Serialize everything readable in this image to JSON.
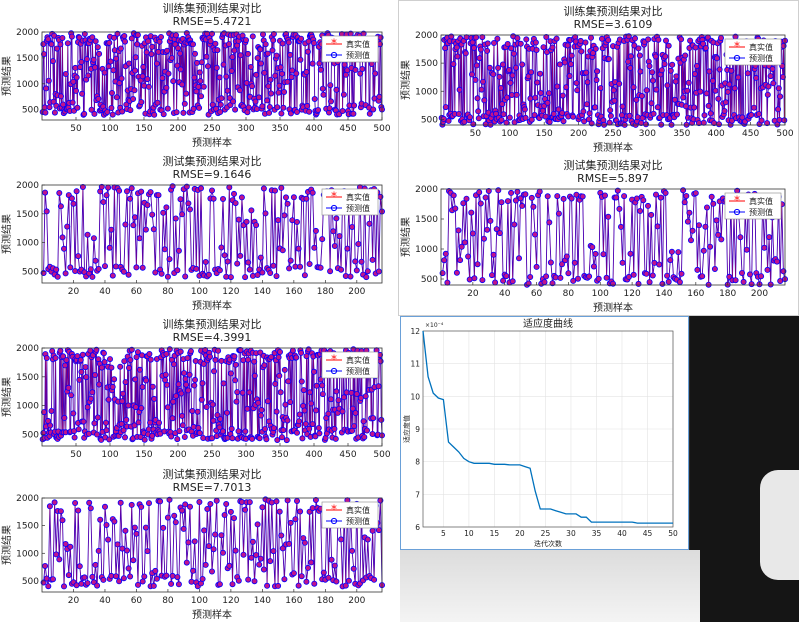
{
  "labels": {
    "train_title": "训练集预测结果对比",
    "test_title": "测试集预测结果对比",
    "xlabel": "预测样本",
    "ylabel": "预测结果",
    "legend_true": "真实值",
    "legend_pred": "预测值",
    "fitness_title": "适应度曲线",
    "fitness_xlabel": "迭代次数",
    "fitness_ylabel": "适应度值",
    "exponent": "×10⁻⁴"
  },
  "colors": {
    "true_series": "#ff0000",
    "pred_series": "#0000ff",
    "fitness_line": "#0072bd"
  },
  "chart_data": [
    {
      "id": "p1-train",
      "type": "line",
      "title": "训练集预测结果对比",
      "subtitle": "RMSE=5.4721",
      "xlabel": "预测样本",
      "ylabel": "预测结果",
      "n": 500,
      "seed": 11,
      "xlim": [
        0,
        500
      ],
      "ylim": [
        300,
        2000
      ],
      "xticks": [
        50,
        100,
        150,
        200,
        250,
        300,
        350,
        400,
        450,
        500
      ],
      "yticks": [
        500,
        1000,
        1500,
        2000
      ],
      "series": [
        {
          "name": "真实值",
          "marker": "*"
        },
        {
          "name": "预测值",
          "marker": "o"
        }
      ],
      "legend": "top-right"
    },
    {
      "id": "p1-test",
      "type": "line",
      "title": "测试集预测结果对比",
      "subtitle": "RMSE=9.1646",
      "xlabel": "预测样本",
      "ylabel": "预测结果",
      "n": 216,
      "seed": 23,
      "xlim": [
        0,
        216
      ],
      "ylim": [
        300,
        2000
      ],
      "xticks": [
        20,
        40,
        60,
        80,
        100,
        120,
        140,
        160,
        180,
        200
      ],
      "yticks": [
        500,
        1000,
        1500,
        2000
      ],
      "series": [
        {
          "name": "真实值",
          "marker": "*"
        },
        {
          "name": "预测值",
          "marker": "o"
        }
      ],
      "legend": "top-right"
    },
    {
      "id": "p2-train",
      "type": "line",
      "title": "训练集预测结果对比",
      "subtitle": "RMSE=3.6109",
      "xlabel": "预测样本",
      "ylabel": "预测结果",
      "n": 500,
      "seed": 37,
      "xlim": [
        0,
        500
      ],
      "ylim": [
        400,
        2000
      ],
      "xticks": [
        50,
        100,
        150,
        200,
        250,
        300,
        350,
        400,
        450,
        500
      ],
      "yticks": [
        500,
        1000,
        1500,
        2000
      ],
      "series": [
        {
          "name": "真实值",
          "marker": "*"
        },
        {
          "name": "预测值",
          "marker": "o"
        }
      ],
      "legend": "top-right"
    },
    {
      "id": "p2-test",
      "type": "line",
      "title": "测试集预测结果对比",
      "subtitle": "RMSE=5.897",
      "xlabel": "预测样本",
      "ylabel": "预测结果",
      "n": 216,
      "seed": 41,
      "xlim": [
        0,
        216
      ],
      "ylim": [
        400,
        2000
      ],
      "xticks": [
        20,
        40,
        60,
        80,
        100,
        120,
        140,
        160,
        180,
        200
      ],
      "yticks": [
        500,
        1000,
        1500,
        2000
      ],
      "series": [
        {
          "name": "真实值",
          "marker": "*"
        },
        {
          "name": "预测值",
          "marker": "o"
        }
      ],
      "legend": "top-right"
    },
    {
      "id": "p3-train",
      "type": "line",
      "title": "训练集预测结果对比",
      "subtitle": "RMSE=4.3991",
      "xlabel": "",
      "ylabel": "预测结果",
      "n": 500,
      "seed": 53,
      "xlim": [
        0,
        500
      ],
      "ylim": [
        300,
        2000
      ],
      "xticks": [
        50,
        100,
        150,
        200,
        250,
        300,
        350,
        400,
        450,
        500
      ],
      "yticks": [
        500,
        1000,
        1500,
        2000
      ],
      "series": [
        {
          "name": "真实值",
          "marker": "*"
        },
        {
          "name": "预测值",
          "marker": "o"
        }
      ],
      "legend": "top-right"
    },
    {
      "id": "p3-test",
      "type": "line",
      "title": "测试集预测结果对比",
      "subtitle": "RMSE=7.7013",
      "xlabel": "预测样本",
      "ylabel": "预测结果",
      "n": 216,
      "seed": 67,
      "xlim": [
        0,
        216
      ],
      "ylim": [
        300,
        2000
      ],
      "xticks": [
        20,
        40,
        60,
        80,
        100,
        120,
        140,
        160,
        180,
        200
      ],
      "yticks": [
        500,
        1000,
        1500,
        2000
      ],
      "series": [
        {
          "name": "真实值",
          "marker": "*"
        },
        {
          "name": "预测值",
          "marker": "o"
        }
      ],
      "legend": "top-right"
    },
    {
      "id": "fitness",
      "type": "line",
      "title": "适应度曲线",
      "xlabel": "迭代次数",
      "ylabel": "适应度值",
      "ylabel_exponent": "×10⁻⁴",
      "xlim": [
        1,
        50
      ],
      "ylim": [
        6,
        12
      ],
      "xticks": [
        5,
        10,
        15,
        20,
        25,
        30,
        35,
        40,
        45,
        50
      ],
      "yticks": [
        6,
        7,
        8,
        9,
        10,
        11,
        12
      ],
      "grid": true,
      "x": [
        1,
        2,
        3,
        4,
        5,
        6,
        7,
        8,
        9,
        10,
        11,
        12,
        13,
        14,
        15,
        16,
        17,
        18,
        19,
        20,
        21,
        22,
        23,
        24,
        25,
        26,
        27,
        28,
        29,
        30,
        31,
        32,
        33,
        34,
        35,
        36,
        37,
        38,
        39,
        40,
        41,
        42,
        43,
        44,
        45,
        46,
        47,
        48,
        49,
        50
      ],
      "y": [
        12.0,
        10.6,
        10.1,
        9.95,
        9.9,
        8.6,
        8.45,
        8.3,
        8.1,
        8.0,
        7.95,
        7.95,
        7.95,
        7.95,
        7.92,
        7.92,
        7.92,
        7.9,
        7.9,
        7.9,
        7.85,
        7.8,
        7.1,
        6.55,
        6.55,
        6.55,
        6.5,
        6.45,
        6.4,
        6.4,
        6.4,
        6.3,
        6.3,
        6.15,
        6.15,
        6.15,
        6.15,
        6.15,
        6.15,
        6.15,
        6.15,
        6.15,
        6.12,
        6.12,
        6.12,
        6.12,
        6.12,
        6.12,
        6.12,
        6.12
      ]
    }
  ]
}
